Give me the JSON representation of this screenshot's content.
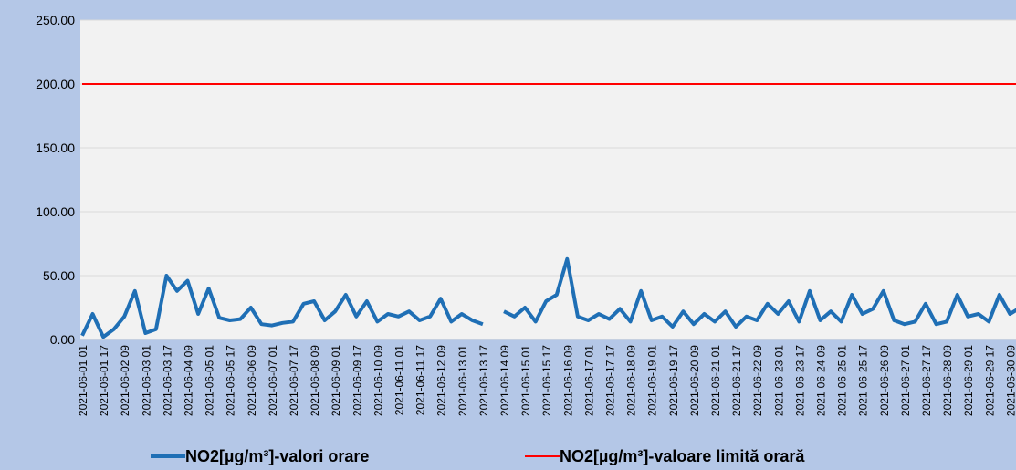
{
  "chart_data": {
    "type": "line",
    "categories": [
      "2021-06-01 01",
      null,
      "2021-06-01 17",
      null,
      "2021-06-02 09",
      null,
      "2021-06-03 01",
      null,
      "2021-06-03 17",
      null,
      "2021-06-04 09",
      null,
      "2021-06-05 01",
      null,
      "2021-06-05 17",
      null,
      "2021-06-06 09",
      null,
      "2021-06-07 01",
      null,
      "2021-06-07 17",
      null,
      "2021-06-08 09",
      null,
      "2021-06-09 01",
      null,
      "2021-06-09 17",
      null,
      "2021-06-10 09",
      null,
      "2021-06-11 01",
      null,
      "2021-06-11 17",
      null,
      "2021-06-12 09",
      null,
      "2021-06-13 01",
      null,
      "2021-06-13 17",
      null,
      "2021-06-14 09",
      null,
      "2021-06-15 01",
      null,
      "2021-06-15 17",
      null,
      "2021-06-16 09",
      null,
      "2021-06-17 01",
      null,
      "2021-06-17 17",
      null,
      "2021-06-18 09",
      null,
      "2021-06-19 01",
      null,
      "2021-06-19 17",
      null,
      "2021-06-20 09",
      null,
      "2021-06-21 01",
      null,
      "2021-06-21 17",
      null,
      "2021-06-22 09",
      null,
      "2021-06-23 01",
      null,
      "2021-06-23 17",
      null,
      "2021-06-24 09",
      null,
      "2021-06-25 01",
      null,
      "2021-06-25 17",
      null,
      "2021-06-26 09",
      null,
      "2021-06-27 01",
      null,
      "2021-06-27 17",
      null,
      "2021-06-28 09",
      null,
      "2021-06-29 01",
      null,
      "2021-06-29 17",
      null,
      "2021-06-30 09",
      null
    ],
    "series": [
      {
        "name": "NO2[µg/m³]-valori orare",
        "color": "#1f6fb5",
        "values": [
          3,
          20,
          2,
          8,
          18,
          38,
          5,
          8,
          50,
          38,
          46,
          20,
          40,
          17,
          15,
          16,
          25,
          12,
          11,
          13,
          14,
          28,
          30,
          15,
          22,
          35,
          18,
          30,
          14,
          20,
          18,
          22,
          15,
          18,
          32,
          14,
          20,
          15,
          12,
          null,
          22,
          18,
          25,
          14,
          30,
          35,
          63,
          18,
          15,
          20,
          16,
          24,
          14,
          38,
          15,
          18,
          10,
          22,
          12,
          20,
          14,
          22,
          10,
          18,
          15,
          28,
          20,
          30,
          14,
          38,
          15,
          22,
          14,
          35,
          20,
          24,
          38,
          15,
          12,
          14,
          28,
          12,
          14,
          35,
          18,
          20,
          14,
          35,
          20,
          25
        ]
      },
      {
        "name": "NO2[µg/m³]-valoare limită orară",
        "color": "#ff0000",
        "values": [
          200,
          200,
          200,
          200,
          200,
          200,
          200,
          200,
          200,
          200,
          200,
          200,
          200,
          200,
          200,
          200,
          200,
          200,
          200,
          200,
          200,
          200,
          200,
          200,
          200,
          200,
          200,
          200,
          200,
          200,
          200,
          200,
          200,
          200,
          200,
          200,
          200,
          200,
          200,
          200,
          200,
          200,
          200,
          200,
          200,
          200,
          200,
          200,
          200,
          200,
          200,
          200,
          200,
          200,
          200,
          200,
          200,
          200,
          200,
          200,
          200,
          200,
          200,
          200,
          200,
          200,
          200,
          200,
          200,
          200,
          200,
          200,
          200,
          200,
          200,
          200,
          200,
          200,
          200,
          200,
          200,
          200,
          200,
          200,
          200,
          200,
          200,
          200,
          200,
          200
        ]
      }
    ],
    "ylim": [
      0,
      250
    ],
    "yticks": [
      {
        "value": 0,
        "label": "0.00"
      },
      {
        "value": 50,
        "label": "50.00"
      },
      {
        "value": 100,
        "label": "100.00"
      },
      {
        "value": 150,
        "label": "150.00"
      },
      {
        "value": 200,
        "label": "200.00"
      },
      {
        "value": 250,
        "label": "250.00"
      }
    ],
    "grid": true
  }
}
